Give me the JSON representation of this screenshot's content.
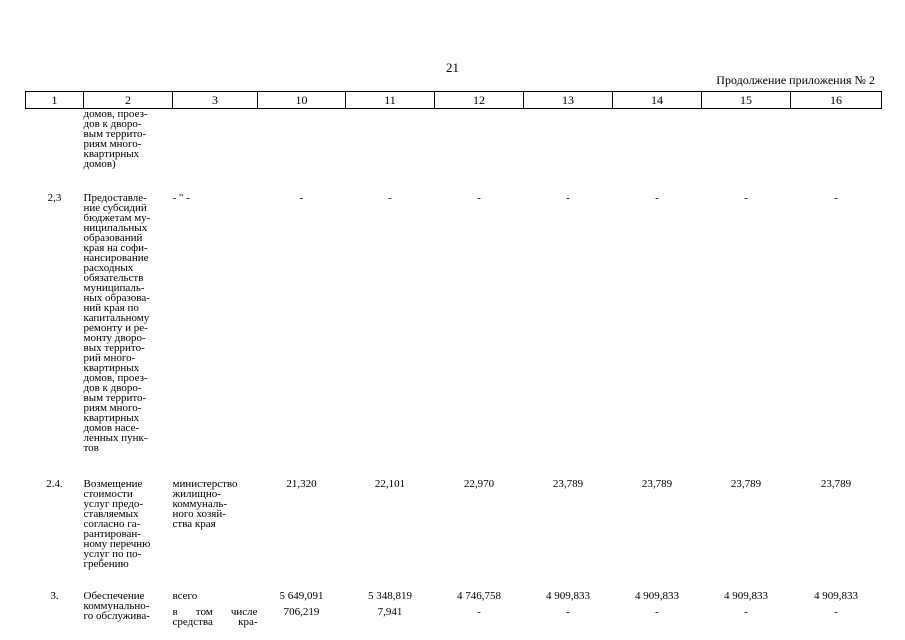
{
  "page": {
    "number": "21",
    "continuation": "Продолжение приложения № 2"
  },
  "table": {
    "headers": [
      "1",
      "2",
      "3",
      "10",
      "11",
      "12",
      "13",
      "14",
      "15",
      "16"
    ],
    "rows": [
      {
        "num": "",
        "name": "домов, проез-\nдов к дворо-\nвым террито-\nриям много-\nквартирных\nдомов)",
        "executor": "",
        "values": [
          "",
          "",
          "",
          "",
          "",
          "",
          ""
        ]
      },
      {
        "num": "2,3",
        "name": "Предоставле-\nние субсидий\nбюджетам му-\nниципальных\nобразований\nкрая на софи-\nнансирование\nрасходных\nобязательств\nмуниципаль-\nных образова-\nний края по\nкапитальному\nремонту и ре-\nмонту дворо-\nвых террито-\nрий много-\nквартирных\nдомов, проез-\nдов к дворо-\nвым террито-\nриям много-\nквартирных\nдомов насе-\nленных пунк-\nтов",
        "executor": "- \" -",
        "values": [
          "-",
          "-",
          "-",
          "-",
          "-",
          "-",
          "-"
        ]
      },
      {
        "num": "2.4.",
        "name": "Возмещение\nстоимости\nуслуг предо-\nставляемых\nсогласно га-\nрантирован-\nному перечню\nуслуг по по-\nгребению",
        "executor": "министерство\nжилищно-\nкоммуналь-\nного хозяй-\nства края",
        "values": [
          "21,320",
          "22,101",
          "22,970",
          "23,789",
          "23,789",
          "23,789",
          "23,789"
        ]
      },
      {
        "num": "3.",
        "name": "Обеспечение\nкоммунально-\nго обслужива-",
        "executor": "всего",
        "values": [
          "5 649,091",
          "5 348,819",
          "4 746,758",
          "4 909,833",
          "4 909,833",
          "4 909,833",
          "4 909,833"
        ]
      },
      {
        "num": "",
        "name": "",
        "executor": "в том числе\nсредства кра-",
        "values": [
          "706,219",
          "7,941",
          "-",
          "-",
          "-",
          "-",
          "-"
        ]
      }
    ]
  }
}
